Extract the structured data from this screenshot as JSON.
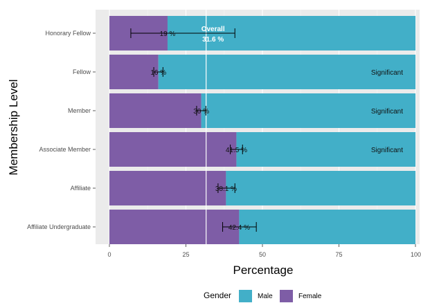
{
  "chart_data": {
    "type": "bar",
    "orientation": "horizontal",
    "stacked": true,
    "ylabel": "Membership Level",
    "xlabel": "Percentage",
    "xlim": [
      0,
      100
    ],
    "x_ticks": [
      "0",
      "25",
      "50",
      "75",
      "100"
    ],
    "categories": [
      "Honorary Fellow",
      "Fellow",
      "Member",
      "Associate Member",
      "Affiliate",
      "Affiliate Undergraduate"
    ],
    "series": [
      {
        "name": "Female",
        "color": "#7E5DA6",
        "values": [
          19,
          16,
          30,
          41.5,
          38.1,
          42.4
        ]
      },
      {
        "name": "Male",
        "color": "#42AFC8",
        "values": [
          81,
          84,
          70,
          58.5,
          61.9,
          57.6
        ]
      }
    ],
    "bar_labels": [
      "19 %",
      "16 %",
      "30 %",
      "41.5 %",
      "38.1 %",
      "42.4 %"
    ],
    "error_bars": [
      {
        "low": 7,
        "high": 41
      },
      {
        "low": 14.5,
        "high": 17.5
      },
      {
        "low": 28.5,
        "high": 31.5
      },
      {
        "low": 39.5,
        "high": 43.5
      },
      {
        "low": 35.5,
        "high": 41
      },
      {
        "low": 37,
        "high": 48
      }
    ],
    "significance": [
      "",
      "Significant",
      "Significant",
      "Significant",
      "",
      ""
    ],
    "overall": {
      "value": 31.6,
      "label": "Overall",
      "value_label": "31.6 %"
    },
    "legend": {
      "title": "Gender",
      "position": "bottom",
      "items": [
        "Male",
        "Female"
      ]
    },
    "grid": true
  }
}
